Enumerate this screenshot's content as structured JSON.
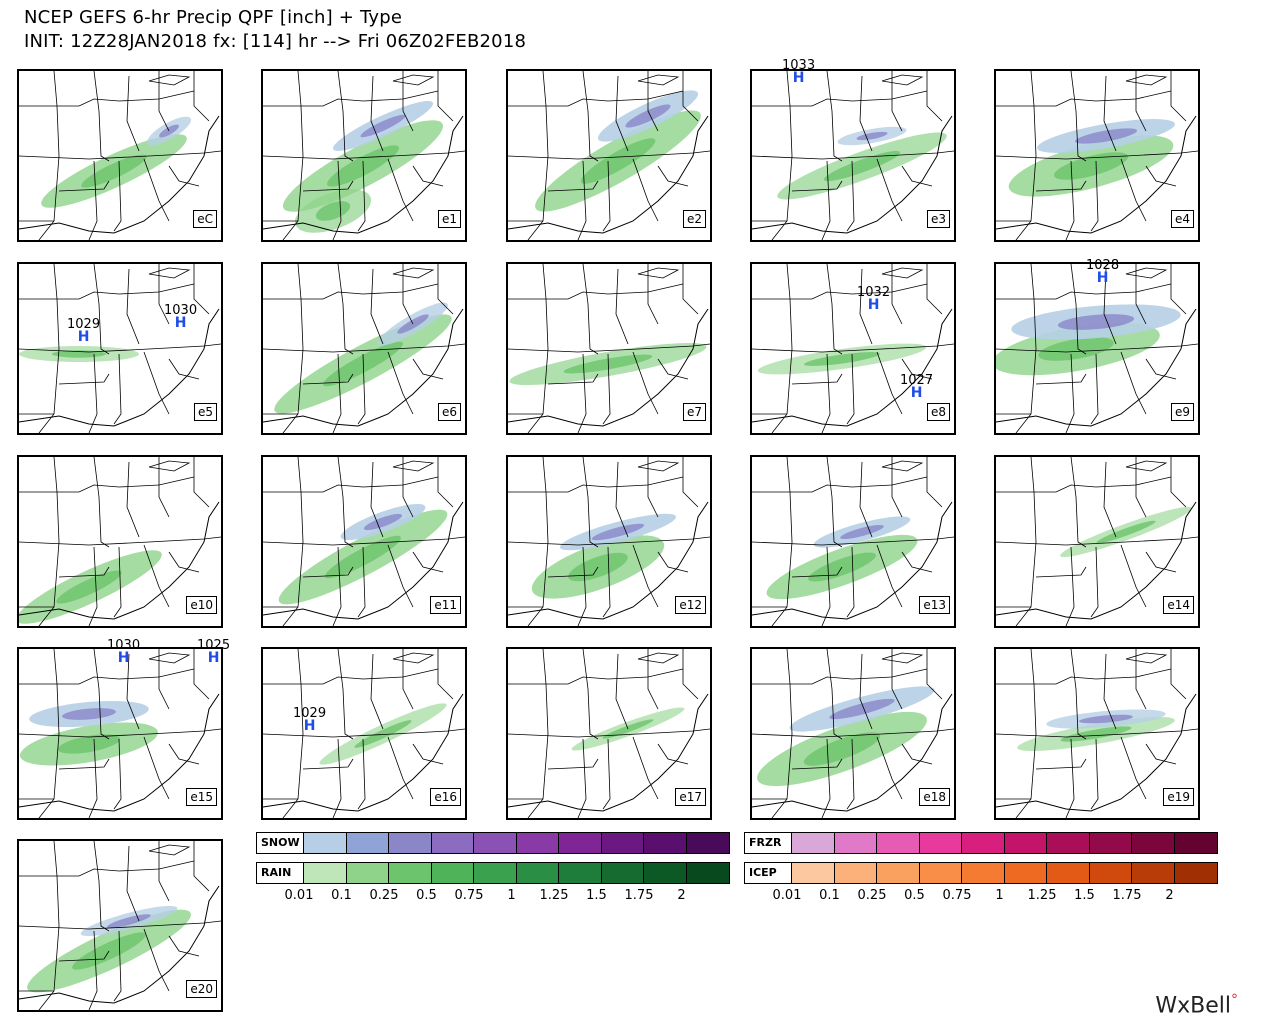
{
  "title": {
    "line1": "NCEP GEFS 6-hr Precip QPF [inch] + Type",
    "line2": "INIT: 12Z28JAN2018 fx: [114] hr --> Fri 06Z02FEB2018"
  },
  "panels": [
    {
      "label": "eC",
      "highs": []
    },
    {
      "label": "e1",
      "highs": []
    },
    {
      "label": "e2",
      "highs": []
    },
    {
      "label": "e3",
      "highs": [
        {
          "value": "1033"
        }
      ]
    },
    {
      "label": "e4",
      "highs": []
    },
    {
      "label": "e5",
      "highs": [
        {
          "value": "1029"
        },
        {
          "value": "1030"
        }
      ]
    },
    {
      "label": "e6",
      "highs": []
    },
    {
      "label": "e7",
      "highs": []
    },
    {
      "label": "e8",
      "highs": [
        {
          "value": "1032"
        },
        {
          "value": "1027"
        }
      ]
    },
    {
      "label": "e9",
      "highs": [
        {
          "value": "1028"
        }
      ]
    },
    {
      "label": "e10",
      "highs": []
    },
    {
      "label": "e11",
      "highs": []
    },
    {
      "label": "e12",
      "highs": []
    },
    {
      "label": "e13",
      "highs": []
    },
    {
      "label": "e14",
      "highs": []
    },
    {
      "label": "e15",
      "highs": [
        {
          "value": "1030"
        },
        {
          "value": "1025"
        }
      ]
    },
    {
      "label": "e16",
      "highs": [
        {
          "value": "1029"
        }
      ]
    },
    {
      "label": "e17",
      "highs": []
    },
    {
      "label": "e18",
      "highs": []
    },
    {
      "label": "e19",
      "highs": []
    },
    {
      "label": "e20",
      "highs": []
    }
  ],
  "high_symbol": "H",
  "scales": {
    "left_ticks": [
      "0.01",
      "0.1",
      "0.25",
      "0.5",
      "0.75",
      "1",
      "1.25",
      "1.5",
      "1.75",
      "2"
    ],
    "right_ticks": [
      "0.01",
      "0.1",
      "0.25",
      "0.5",
      "0.75",
      "1",
      "1.25",
      "1.5",
      "1.75",
      "2"
    ],
    "snow": {
      "label": "SNOW",
      "colors": [
        "#b6cfe6",
        "#8fa3d6",
        "#8a86c8",
        "#8b6cc0",
        "#8a52b4",
        "#8a3aa6",
        "#7f2596",
        "#6b1882",
        "#5a0e6e",
        "#4a0a5a"
      ]
    },
    "rain": {
      "label": "RAIN",
      "colors": [
        "#bfe6b8",
        "#8fd38a",
        "#6cc46c",
        "#4fb35a",
        "#3aa14e",
        "#2a8f44",
        "#1e7d3a",
        "#156b30",
        "#0d5926",
        "#084a1e"
      ]
    },
    "frzr": {
      "label": "FRZR",
      "colors": [
        "#d9a8d8",
        "#e07ac8",
        "#e65bb4",
        "#e83a9c",
        "#d81f7e",
        "#c4146a",
        "#aa0e58",
        "#920a4a",
        "#7a063c",
        "#640330"
      ]
    },
    "icep": {
      "label": "ICEP",
      "colors": [
        "#fbc8a0",
        "#fcb07a",
        "#fba15f",
        "#f98e49",
        "#f57b32",
        "#ee6a22",
        "#e25a16",
        "#d04a0e",
        "#b83c08",
        "#a03004"
      ]
    }
  },
  "logo": {
    "text": "WxBell",
    "mark": "°"
  }
}
